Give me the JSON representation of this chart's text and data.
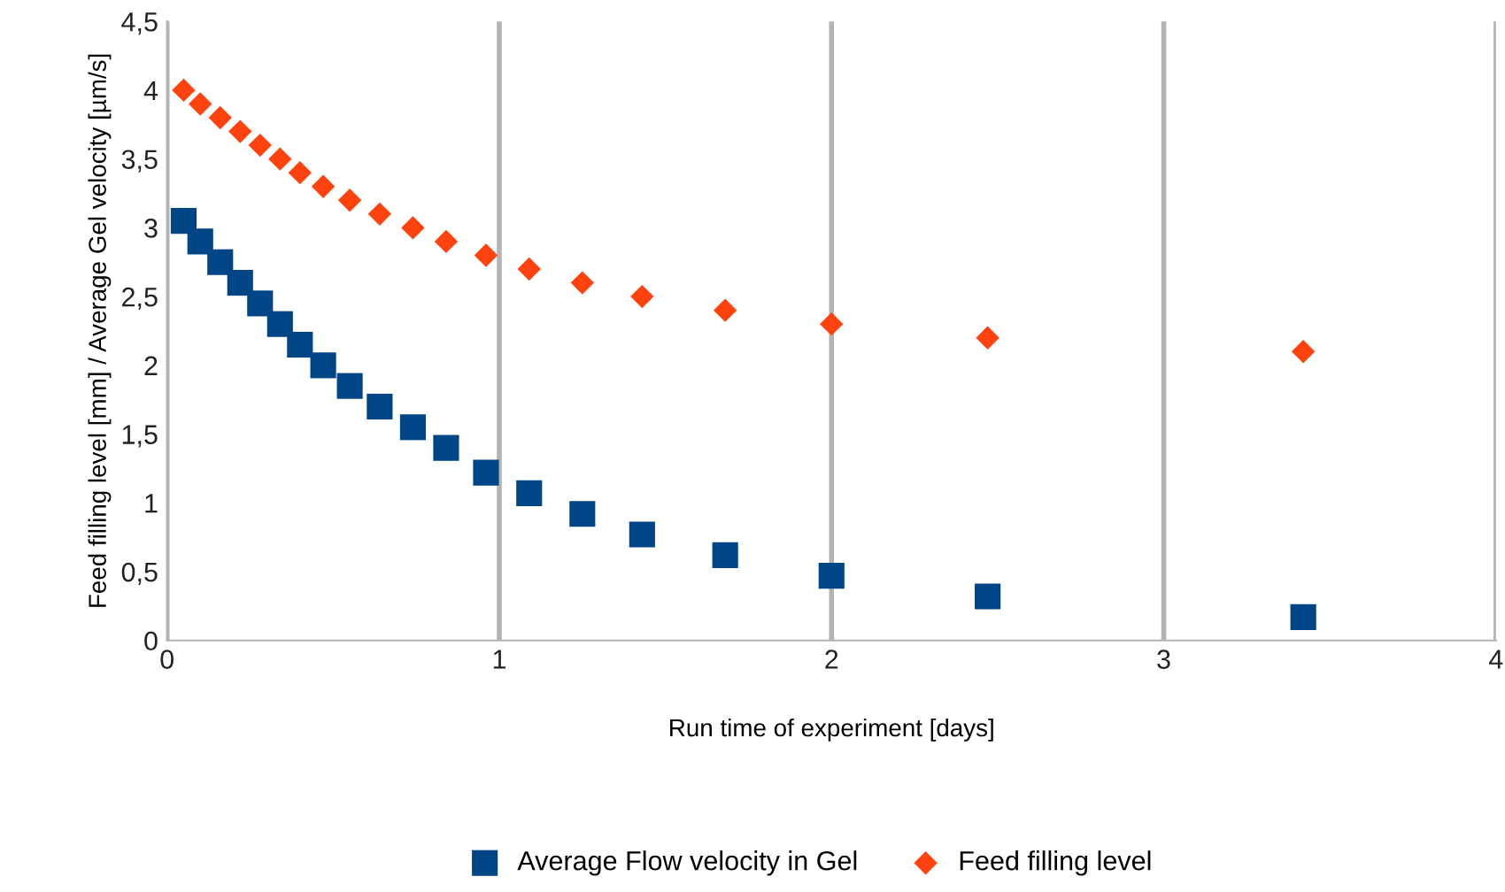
{
  "chart_data": {
    "type": "scatter",
    "xlabel": "Run time of experiment [days]",
    "ylabel": "Feed filling level [mm] / Average Gel velocity [µm/s]",
    "series": [
      {
        "name": "Average Flow velocity in Gel",
        "color": "#004586",
        "marker": "square",
        "x": [
          0.05,
          0.1,
          0.16,
          0.22,
          0.28,
          0.34,
          0.4,
          0.47,
          0.55,
          0.64,
          0.74,
          0.84,
          0.96,
          1.09,
          1.25,
          1.43,
          1.68,
          2.0,
          2.47,
          3.42
        ],
        "values": [
          3.05,
          2.9,
          2.75,
          2.6,
          2.45,
          2.3,
          2.15,
          2.0,
          1.85,
          1.7,
          1.55,
          1.4,
          1.22,
          1.07,
          0.92,
          0.77,
          0.62,
          0.47,
          0.32,
          0.17
        ]
      },
      {
        "name": "Feed filling level",
        "color": "#ff420e",
        "marker": "diamond",
        "x": [
          0.05,
          0.1,
          0.16,
          0.22,
          0.28,
          0.34,
          0.4,
          0.47,
          0.55,
          0.64,
          0.74,
          0.84,
          0.96,
          1.09,
          1.25,
          1.43,
          1.68,
          2.0,
          2.47,
          3.42
        ],
        "values": [
          4.0,
          3.9,
          3.8,
          3.7,
          3.6,
          3.5,
          3.4,
          3.3,
          3.2,
          3.1,
          3.0,
          2.9,
          2.8,
          2.7,
          2.6,
          2.5,
          2.4,
          2.3,
          2.2,
          2.1
        ]
      }
    ],
    "xlim": [
      0,
      4
    ],
    "xticks": [
      0,
      1,
      2,
      3,
      4
    ],
    "ylim": [
      0,
      4.5
    ],
    "yticks": [
      0,
      {
        "value": 0.5,
        "label": "0,5"
      },
      1,
      {
        "value": 1.5,
        "label": "1,5"
      },
      2,
      {
        "value": 2.5,
        "label": "2,5"
      },
      3,
      {
        "value": 3.5,
        "label": "3,5"
      },
      4,
      {
        "value": 4.5,
        "label": "4,5"
      }
    ],
    "grid": "x",
    "legend": "bottom"
  }
}
